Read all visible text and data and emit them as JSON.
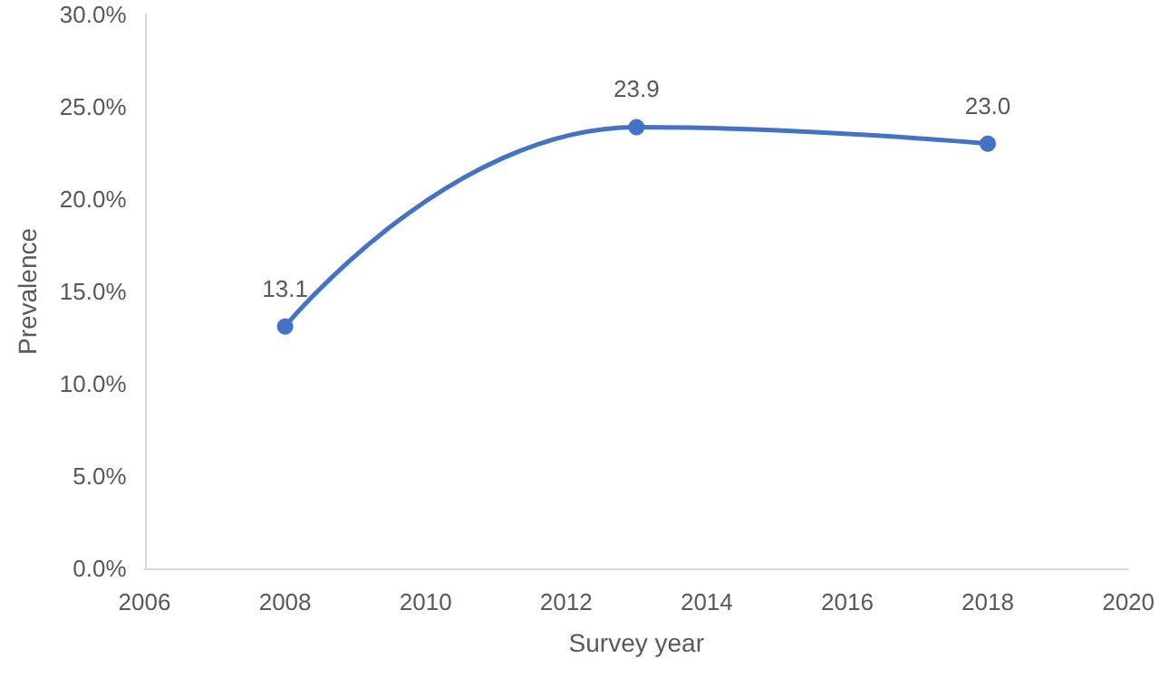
{
  "chart_data": {
    "type": "line",
    "xlabel": "Survey year",
    "ylabel": "Prevalence",
    "x": [
      2008,
      2013,
      2018
    ],
    "series": [
      {
        "color": "#4472c4",
        "values": [
          13.1,
          23.9,
          23.0
        ],
        "value_labels": [
          "13.1",
          "23.9",
          "23.0"
        ]
      }
    ],
    "xlim": [
      2006,
      2020
    ],
    "xticks": [
      2006,
      2008,
      2010,
      2012,
      2014,
      2016,
      2018,
      2020
    ],
    "ylim": [
      0,
      30
    ],
    "yticks": [
      {
        "value": 0,
        "label": "0.0%"
      },
      {
        "value": 5,
        "label": "5.0%"
      },
      {
        "value": 10,
        "label": "10.0%"
      },
      {
        "value": 15,
        "label": "15.0%"
      },
      {
        "value": 20,
        "label": "20.0%"
      },
      {
        "value": 25,
        "label": "25.0%"
      },
      {
        "value": 30,
        "label": "30.0%"
      }
    ],
    "marker": "circle",
    "line_style": "solid",
    "grid": false
  }
}
